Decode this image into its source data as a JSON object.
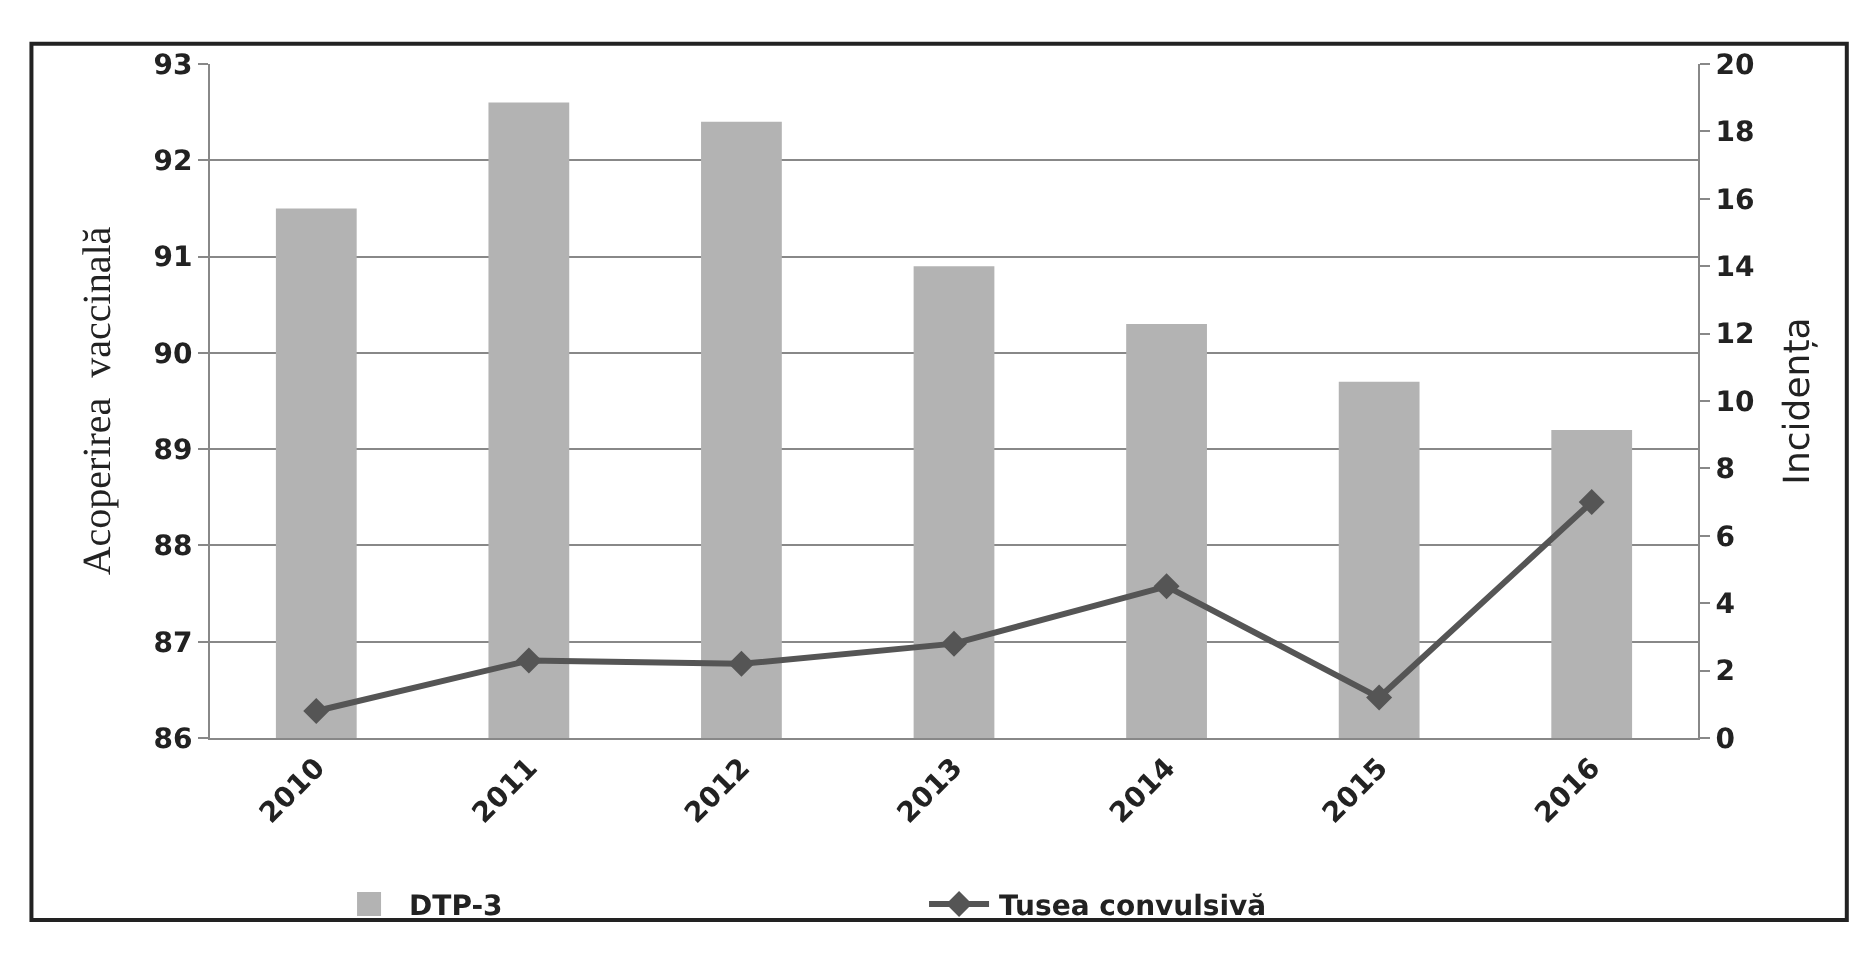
{
  "chart_data": {
    "type": "bar",
    "ylabel": "Acoperirea  vaccinală",
    "y2label": "Incidența",
    "categories": [
      "2010",
      "2011",
      "2012",
      "2013",
      "2014",
      "2015",
      "2016"
    ],
    "series": [
      {
        "name": "DTP-3",
        "color": "#b3b3b3",
        "values": [
          91.5,
          92.6,
          92.4,
          90.9,
          90.3,
          89.7,
          89.2
        ]
      },
      {
        "name": "Tusea convulsivă",
        "type": "line",
        "axis": "y2",
        "color": "#555555",
        "marker": "diamond",
        "values": [
          0.8,
          2.3,
          2.2,
          2.8,
          4.5,
          1.2,
          7.0
        ]
      }
    ],
    "ylim": [
      86,
      93
    ],
    "yticks": [
      86,
      87,
      88,
      89,
      90,
      91,
      92,
      93
    ],
    "y2lim": [
      0,
      20
    ],
    "y2ticks": [
      0,
      2,
      4,
      6,
      8,
      10,
      12,
      14,
      16,
      18,
      20
    ],
    "grid": "y",
    "legend": "bottom"
  }
}
